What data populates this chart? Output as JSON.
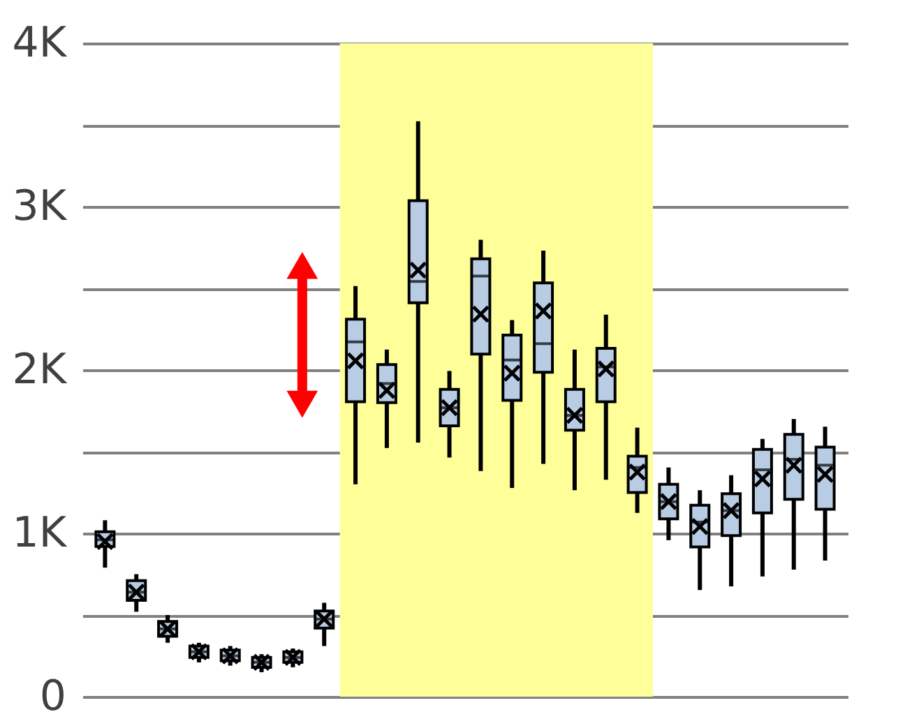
{
  "chart_data": {
    "type": "box",
    "categories": [
      null,
      null,
      null,
      null,
      null,
      null,
      null,
      null,
      null,
      null,
      null,
      null,
      null,
      null,
      null,
      null,
      null,
      null,
      null,
      null,
      null,
      null,
      null,
      null
    ],
    "ylim": [
      0,
      4000
    ],
    "yticks": [
      0,
      {
        "value": 500,
        "label": null
      },
      {
        "value": 1000,
        "label": "1K"
      },
      {
        "value": 1500,
        "label": null
      },
      {
        "value": 2000,
        "label": "2K"
      },
      {
        "value": 2500,
        "label": null
      },
      {
        "value": 3000,
        "label": "3K"
      },
      {
        "value": 3500,
        "label": null
      },
      {
        "value": 4000,
        "label": "4K"
      }
    ],
    "tick_labels": "y",
    "grid": "y",
    "color": "#b8cce4",
    "boxes": [
      {
        "low": 790,
        "q1": 920,
        "median": 960,
        "q3": 1010,
        "high": 1080,
        "mean": 950
      },
      {
        "low": 520,
        "q1": 590,
        "median": 640,
        "q3": 710,
        "high": 750,
        "mean": 640
      },
      {
        "low": 330,
        "q1": 370,
        "median": 415,
        "q3": 460,
        "high": 500,
        "mean": 415
      },
      {
        "low": 210,
        "q1": 240,
        "median": 275,
        "q3": 310,
        "high": 330,
        "mean": 275
      },
      {
        "low": 190,
        "q1": 220,
        "median": 250,
        "q3": 285,
        "high": 310,
        "mean": 250
      },
      {
        "low": 150,
        "q1": 180,
        "median": 210,
        "q3": 240,
        "high": 260,
        "mean": 210
      },
      {
        "low": 180,
        "q1": 210,
        "median": 240,
        "q3": 275,
        "high": 295,
        "mean": 240
      },
      {
        "low": 310,
        "q1": 420,
        "median": 475,
        "q3": 525,
        "high": 575,
        "mean": 475
      },
      {
        "low": 1300,
        "q1": 1806,
        "median": 2172,
        "q3": 2311,
        "high": 2514,
        "mean": 2056
      },
      {
        "low": 1522,
        "q1": 1800,
        "median": 1917,
        "q3": 2033,
        "high": 2125,
        "mean": 1875
      },
      {
        "low": 1556,
        "q1": 2411,
        "median": 2542,
        "q3": 3036,
        "high": 3522,
        "mean": 2611
      },
      {
        "low": 1464,
        "q1": 1658,
        "median": 1769,
        "q3": 1881,
        "high": 1994,
        "mean": 1769
      },
      {
        "low": 1381,
        "q1": 2097,
        "median": 2575,
        "q3": 2681,
        "high": 2797,
        "mean": 2342
      },
      {
        "low": 1278,
        "q1": 1814,
        "median": 2061,
        "q3": 2214,
        "high": 2306,
        "mean": 1981
      },
      {
        "low": 1425,
        "q1": 1986,
        "median": 2161,
        "q3": 2533,
        "high": 2731,
        "mean": 2361
      },
      {
        "low": 1264,
        "q1": 1631,
        "median": 1722,
        "q3": 1881,
        "high": 2125,
        "mean": 1722
      },
      {
        "low": 1328,
        "q1": 1806,
        "median": 2019,
        "q3": 2133,
        "high": 2339,
        "mean": 2006
      },
      {
        "low": 1125,
        "q1": 1250,
        "median": 1403,
        "q3": 1472,
        "high": 1647,
        "mean": 1375
      },
      {
        "low": 958,
        "q1": 1089,
        "median": 1194,
        "q3": 1300,
        "high": 1403,
        "mean": 1194
      },
      {
        "low": 653,
        "q1": 917,
        "median": 1069,
        "q3": 1172,
        "high": 1264,
        "mean": 1042
      },
      {
        "low": 675,
        "q1": 986,
        "median": 1139,
        "q3": 1242,
        "high": 1356,
        "mean": 1139
      },
      {
        "low": 736,
        "q1": 1125,
        "median": 1389,
        "q3": 1514,
        "high": 1578,
        "mean": 1333
      },
      {
        "low": 778,
        "q1": 1208,
        "median": 1453,
        "q3": 1606,
        "high": 1700,
        "mean": 1417
      },
      {
        "low": 833,
        "q1": 1147,
        "median": 1417,
        "q3": 1528,
        "high": 1653,
        "mean": 1361
      }
    ]
  }
}
